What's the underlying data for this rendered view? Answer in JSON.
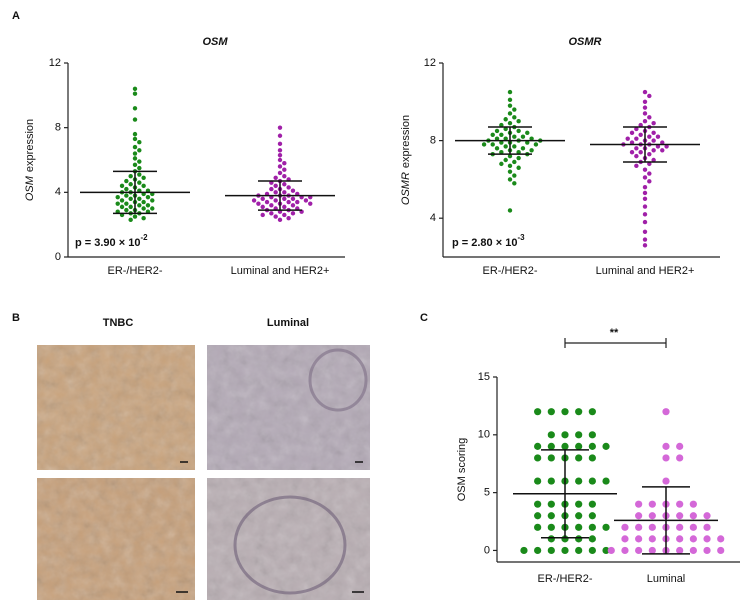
{
  "panels": {
    "labels": [
      "A",
      "B",
      "C"
    ]
  },
  "panel_b": {
    "columns": [
      "TNBC",
      "Luminal"
    ]
  },
  "chart_data": [
    {
      "type": "swarm",
      "title": "OSM",
      "ylabel_gene": "OSM",
      "ylabel_text": "expression",
      "annotation": "p = 3.90 × 10",
      "annotation_exponent": "-2",
      "ylim": [
        0,
        12
      ],
      "yticks": [
        0,
        4,
        8,
        12
      ],
      "series": [
        {
          "name": "ER-/HER2-",
          "color": "#1a8a1a",
          "mean": 4.0,
          "sd": 1.3,
          "values": [
            10.4,
            10.1,
            9.2,
            8.5,
            7.6,
            7.3,
            7.1,
            6.8,
            6.6,
            6.4,
            6.1,
            5.9,
            5.7,
            5.5,
            5.3,
            5.1,
            5.0,
            4.9,
            4.8,
            4.7,
            4.6,
            4.5,
            4.4,
            4.4,
            4.3,
            4.2,
            4.1,
            4.1,
            4.0,
            4.0,
            3.9,
            3.9,
            3.8,
            3.8,
            3.7,
            3.7,
            3.6,
            3.6,
            3.5,
            3.5,
            3.4,
            3.4,
            3.3,
            3.3,
            3.2,
            3.2,
            3.1,
            3.1,
            3.0,
            3.0,
            2.9,
            2.9,
            2.8,
            2.8,
            2.7,
            2.7,
            2.6,
            2.5,
            2.4,
            2.3
          ]
        },
        {
          "name": "Luminal and HER2+",
          "color": "#a020a8",
          "mean": 3.8,
          "sd": 0.9,
          "values": [
            8.0,
            7.5,
            7.0,
            6.6,
            6.3,
            6.0,
            5.8,
            5.6,
            5.4,
            5.2,
            5.0,
            4.9,
            4.8,
            4.7,
            4.6,
            4.5,
            4.4,
            4.3,
            4.2,
            4.2,
            4.1,
            4.0,
            4.0,
            3.9,
            3.9,
            3.8,
            3.8,
            3.8,
            3.7,
            3.7,
            3.7,
            3.6,
            3.6,
            3.6,
            3.5,
            3.5,
            3.5,
            3.4,
            3.4,
            3.4,
            3.3,
            3.3,
            3.3,
            3.2,
            3.2,
            3.1,
            3.1,
            3.0,
            3.0,
            2.9,
            2.9,
            2.8,
            2.8,
            2.7,
            2.7,
            2.6,
            2.6,
            2.5,
            2.4,
            2.3
          ]
        }
      ]
    },
    {
      "type": "swarm",
      "title": "OSMR",
      "ylabel_gene": "OSMR",
      "ylabel_text": "expression",
      "annotation": "p = 2.80 × 10",
      "annotation_exponent": "-3",
      "ylim": [
        2,
        12
      ],
      "yticks": [
        4,
        8,
        12
      ],
      "series": [
        {
          "name": "ER-/HER2-",
          "color": "#1a8a1a",
          "mean": 8.0,
          "sd": 0.7,
          "values": [
            10.5,
            10.1,
            9.8,
            9.6,
            9.4,
            9.2,
            9.1,
            9.0,
            8.9,
            8.8,
            8.7,
            8.6,
            8.5,
            8.5,
            8.4,
            8.4,
            8.3,
            8.3,
            8.2,
            8.2,
            8.1,
            8.1,
            8.1,
            8.0,
            8.0,
            8.0,
            7.9,
            7.9,
            7.9,
            7.8,
            7.8,
            7.8,
            7.7,
            7.7,
            7.6,
            7.6,
            7.5,
            7.5,
            7.4,
            7.4,
            7.3,
            7.3,
            7.2,
            7.1,
            7.0,
            6.9,
            6.8,
            6.7,
            6.6,
            6.4,
            6.2,
            6.0,
            5.8,
            4.4
          ]
        },
        {
          "name": "Luminal and HER2+",
          "color": "#a020a8",
          "mean": 7.8,
          "sd": 0.9,
          "values": [
            10.5,
            10.3,
            10.0,
            9.7,
            9.4,
            9.2,
            9.0,
            8.9,
            8.8,
            8.7,
            8.6,
            8.5,
            8.4,
            8.4,
            8.3,
            8.2,
            8.2,
            8.1,
            8.1,
            8.0,
            8.0,
            7.9,
            7.9,
            7.8,
            7.8,
            7.8,
            7.7,
            7.7,
            7.6,
            7.6,
            7.5,
            7.5,
            7.4,
            7.4,
            7.3,
            7.2,
            7.1,
            7.0,
            6.9,
            6.8,
            6.7,
            6.5,
            6.3,
            6.1,
            5.9,
            5.6,
            5.3,
            5.0,
            4.6,
            4.2,
            3.8,
            3.3,
            2.9,
            2.6
          ]
        }
      ]
    },
    {
      "type": "swarm",
      "ylabel_text": "OSM scoring",
      "annotation": "**",
      "ylim": [
        -1,
        15
      ],
      "yticks": [
        0,
        5,
        10,
        15
      ],
      "series": [
        {
          "name": "ER-/HER2-",
          "color": "#1a8a1a",
          "mean": 4.9,
          "sd": 3.8,
          "values": [
            12,
            12,
            12,
            12,
            12,
            10,
            10,
            10,
            10,
            9,
            9,
            9,
            9,
            9,
            9,
            8,
            8,
            8,
            8,
            8,
            6,
            6,
            6,
            6,
            6,
            6,
            4,
            4,
            4,
            4,
            4,
            3,
            3,
            3,
            3,
            3,
            2,
            2,
            2,
            2,
            2,
            2,
            1,
            1,
            1,
            1,
            0,
            0,
            0,
            0,
            0,
            0,
            0
          ]
        },
        {
          "name": "Luminal",
          "color": "#d468d8",
          "mean": 2.6,
          "sd": 2.9,
          "values": [
            12,
            9,
            9,
            8,
            8,
            6,
            4,
            4,
            4,
            4,
            4,
            3,
            3,
            3,
            3,
            3,
            3,
            2,
            2,
            2,
            2,
            2,
            2,
            2,
            1,
            1,
            1,
            1,
            1,
            1,
            1,
            1,
            0,
            0,
            0,
            0,
            0,
            0,
            0,
            0,
            0
          ]
        }
      ]
    }
  ]
}
